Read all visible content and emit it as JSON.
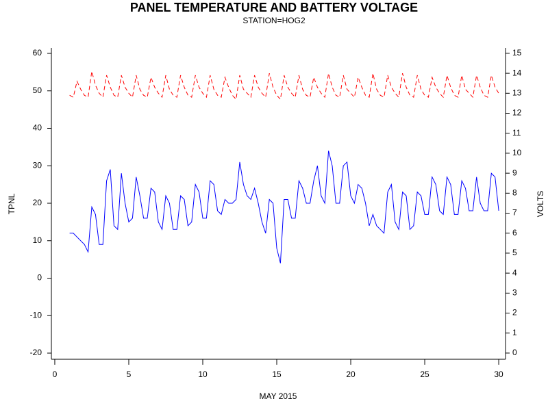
{
  "chart_data": {
    "type": "line",
    "title": "PANEL TEMPERATURE AND BATTERY VOLTAGE",
    "subtitle": "STATION=HOG2",
    "xlabel": "MAY 2015",
    "ylabel": "TPNL",
    "y2label": "VOLTS",
    "xlim": [
      -0.23,
      30.46
    ],
    "xticks": [
      0,
      5,
      10,
      15,
      20,
      25,
      30
    ],
    "ylim": [
      -21.64,
      61.46
    ],
    "yticks": [
      -20,
      -10,
      0,
      10,
      20,
      30,
      40,
      50,
      60
    ],
    "y2lim": [
      -0.31,
      15.27
    ],
    "y2ticks": [
      0,
      1,
      2,
      3,
      4,
      5,
      6,
      7,
      8,
      9,
      10,
      11,
      12,
      13,
      14,
      15
    ],
    "x": [
      1,
      1.25,
      1.5,
      1.75,
      2,
      2.25,
      2.5,
      2.75,
      3,
      3.25,
      3.5,
      3.75,
      4,
      4.25,
      4.5,
      4.75,
      5,
      5.25,
      5.5,
      5.75,
      6,
      6.25,
      6.5,
      6.75,
      7,
      7.25,
      7.5,
      7.75,
      8,
      8.25,
      8.5,
      8.75,
      9,
      9.25,
      9.5,
      9.75,
      10,
      10.25,
      10.5,
      10.75,
      11,
      11.25,
      11.5,
      11.75,
      12,
      12.25,
      12.5,
      12.75,
      13,
      13.25,
      13.5,
      13.75,
      14,
      14.25,
      14.5,
      14.75,
      15,
      15.25,
      15.5,
      15.75,
      16,
      16.25,
      16.5,
      16.75,
      17,
      17.25,
      17.5,
      17.75,
      18,
      18.25,
      18.5,
      18.75,
      19,
      19.25,
      19.5,
      19.75,
      20,
      20.25,
      20.5,
      20.75,
      21,
      21.25,
      21.5,
      21.75,
      22,
      22.25,
      22.5,
      22.75,
      23,
      23.25,
      23.5,
      23.75,
      24,
      24.25,
      24.5,
      24.75,
      25,
      25.25,
      25.5,
      25.75,
      26,
      26.25,
      26.5,
      26.75,
      27,
      27.25,
      27.5,
      27.75,
      28,
      28.25,
      28.5,
      28.75,
      29,
      29.25,
      29.5,
      29.75,
      30
    ],
    "series": [
      {
        "name": "TPNL",
        "color": "#0000ff",
        "axis": "y",
        "dashed": false,
        "values": [
          12,
          12,
          11,
          10,
          9,
          7,
          19,
          17,
          9,
          9,
          26,
          29,
          14,
          13,
          28,
          20,
          15,
          16,
          27,
          22,
          16,
          16,
          24,
          23,
          15,
          13,
          22,
          20,
          13,
          13,
          22,
          21,
          14,
          15,
          25,
          23,
          16,
          16,
          26,
          25,
          18,
          17,
          21,
          20,
          20,
          21,
          31,
          25,
          22,
          21,
          24,
          20,
          15,
          12,
          21,
          20,
          8,
          4,
          21,
          21,
          16,
          16,
          26,
          24,
          20,
          20,
          26,
          30,
          22,
          20,
          34,
          30,
          20,
          20,
          30,
          31,
          22,
          20,
          25,
          24,
          20,
          14,
          17,
          14,
          13,
          12,
          23,
          25,
          15,
          13,
          23,
          22,
          13,
          14,
          23,
          22,
          17,
          17,
          27,
          25,
          18,
          17,
          27,
          25,
          17,
          17,
          26,
          24,
          18,
          18,
          27,
          20,
          18,
          18,
          28,
          27,
          18
        ]
      },
      {
        "name": "VOLTS",
        "color": "#ff0000",
        "axis": "y2",
        "dashed": true,
        "values": [
          12.9,
          12.8,
          13.6,
          13.2,
          12.9,
          12.8,
          14.1,
          13.4,
          13.0,
          12.8,
          13.9,
          13.3,
          12.9,
          12.8,
          13.9,
          13.3,
          13.0,
          12.8,
          13.9,
          13.2,
          12.9,
          12.8,
          13.8,
          13.3,
          13.0,
          12.8,
          13.9,
          13.2,
          12.9,
          12.8,
          13.9,
          13.3,
          12.9,
          12.8,
          13.9,
          13.3,
          13.0,
          12.8,
          13.9,
          13.2,
          12.9,
          12.8,
          13.8,
          13.3,
          12.9,
          12.7,
          13.9,
          13.2,
          13.0,
          12.8,
          13.9,
          13.3,
          13.0,
          12.8,
          14.0,
          13.3,
          12.9,
          12.7,
          13.9,
          13.3,
          13.0,
          12.8,
          13.9,
          13.2,
          12.9,
          12.8,
          13.8,
          13.3,
          13.0,
          12.8,
          14.0,
          13.3,
          12.9,
          12.8,
          13.9,
          13.2,
          13.0,
          12.8,
          13.8,
          13.3,
          12.9,
          12.8,
          14.0,
          13.2,
          12.9,
          12.8,
          13.9,
          13.3,
          13.0,
          12.8,
          14.0,
          13.3,
          12.9,
          12.8,
          13.9,
          13.2,
          12.9,
          12.8,
          13.8,
          13.3,
          13.0,
          12.8,
          13.9,
          13.3,
          12.9,
          12.8,
          13.9,
          13.2,
          13.0,
          12.8,
          13.9,
          13.3,
          12.9,
          12.8,
          13.9,
          13.3,
          13.0
        ]
      }
    ]
  }
}
